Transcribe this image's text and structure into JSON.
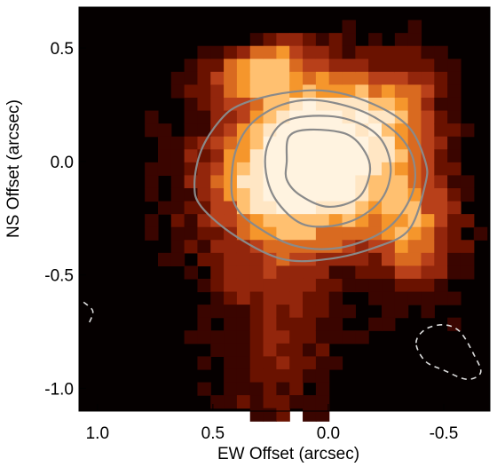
{
  "chart_data": {
    "type": "heatmap",
    "title": "",
    "xlabel": "EW Offset (arcsec)",
    "ylabel": "NS Offset (arcsec)",
    "xlim": [
      1.08,
      -0.7
    ],
    "ylim": [
      -1.1,
      0.68
    ],
    "x_ticks": [
      {
        "value": 1.0,
        "label": "1.0"
      },
      {
        "value": 0.5,
        "label": "0.5"
      },
      {
        "value": 0.0,
        "label": "0.0"
      },
      {
        "value": -0.5,
        "label": "-0.5"
      }
    ],
    "y_ticks": [
      {
        "value": 0.5,
        "label": "0.5"
      },
      {
        "value": 0.0,
        "label": "0.0"
      },
      {
        "value": -0.5,
        "label": "-0.5"
      },
      {
        "value": -1.0,
        "label": "-1.0"
      }
    ],
    "colormap": [
      "#050000",
      "#3a0500",
      "#6a1200",
      "#93260c",
      "#b8401a",
      "#d96a20",
      "#f5962c",
      "#ffc070",
      "#ffe6c4",
      "#fff3e0"
    ],
    "grid": false,
    "image": {
      "pixel_size_arcsec": 0.057,
      "blobs": [
        {
          "x": 0.05,
          "y": 0.06,
          "sx": 0.26,
          "sy": 0.2,
          "rot": 0,
          "amp": 9.5
        },
        {
          "x": 0.3,
          "y": 0.42,
          "sx": 0.17,
          "sy": 0.07,
          "rot": -20,
          "amp": 6
        },
        {
          "x": -0.38,
          "y": -0.33,
          "sx": 0.12,
          "sy": 0.2,
          "rot": 0,
          "amp": 4.5
        },
        {
          "x": -0.32,
          "y": 0.22,
          "sx": 0.14,
          "sy": 0.2,
          "rot": 0,
          "amp": 3.2
        },
        {
          "x": 0.05,
          "y": -0.18,
          "sx": 0.36,
          "sy": 0.16,
          "rot": 15,
          "amp": 3.5
        },
        {
          "x": 0.26,
          "y": -0.3,
          "sx": 0.26,
          "sy": 0.24,
          "rot": 0,
          "amp": 2.8
        },
        {
          "x": 0.23,
          "y": -0.82,
          "sx": 0.17,
          "sy": 0.3,
          "rot": 0,
          "amp": 2.6
        },
        {
          "x": 0.05,
          "y": 0.3,
          "sx": 0.25,
          "sy": 0.12,
          "rot": 0,
          "amp": 2.5
        }
      ],
      "noise_amplitude": 1.5
    },
    "contours": [
      {
        "name": "outer",
        "style": "solid",
        "color": "#8a8a8a",
        "points": [
          [
            0.58,
            -0.1
          ],
          [
            0.55,
            0.05
          ],
          [
            0.47,
            0.18
          ],
          [
            0.38,
            0.25
          ],
          [
            0.2,
            0.3
          ],
          [
            0.0,
            0.31
          ],
          [
            -0.2,
            0.25
          ],
          [
            -0.35,
            0.15
          ],
          [
            -0.42,
            0.0
          ],
          [
            -0.42,
            -0.1
          ],
          [
            -0.35,
            -0.3
          ],
          [
            -0.2,
            -0.38
          ],
          [
            0.0,
            -0.43
          ],
          [
            0.2,
            -0.43
          ],
          [
            0.4,
            -0.33
          ],
          [
            0.55,
            -0.2
          ]
        ]
      },
      {
        "name": "middle",
        "style": "solid",
        "color": "#8a8a8a",
        "points": [
          [
            0.42,
            -0.1
          ],
          [
            0.4,
            0.05
          ],
          [
            0.33,
            0.17
          ],
          [
            0.2,
            0.25
          ],
          [
            0.05,
            0.27
          ],
          [
            -0.15,
            0.22
          ],
          [
            -0.3,
            0.12
          ],
          [
            -0.37,
            0.0
          ],
          [
            -0.36,
            -0.15
          ],
          [
            -0.25,
            -0.3
          ],
          [
            -0.05,
            -0.38
          ],
          [
            0.15,
            -0.37
          ],
          [
            0.32,
            -0.28
          ],
          [
            0.4,
            -0.2
          ]
        ]
      },
      {
        "name": "inner",
        "style": "solid",
        "color": "#8a8a8a",
        "points": [
          [
            0.27,
            -0.05
          ],
          [
            0.26,
            0.08
          ],
          [
            0.18,
            0.18
          ],
          [
            0.0,
            0.2
          ],
          [
            -0.15,
            0.16
          ],
          [
            -0.24,
            0.08
          ],
          [
            -0.27,
            -0.05
          ],
          [
            -0.22,
            -0.18
          ],
          [
            -0.08,
            -0.27
          ],
          [
            0.1,
            -0.28
          ],
          [
            0.22,
            -0.18
          ]
        ]
      },
      {
        "name": "core",
        "style": "solid",
        "color": "#8a8a8a",
        "points": [
          [
            0.18,
            0.0
          ],
          [
            0.17,
            0.11
          ],
          [
            0.08,
            0.14
          ],
          [
            -0.08,
            0.12
          ],
          [
            -0.16,
            0.04
          ],
          [
            -0.18,
            -0.05
          ],
          [
            -0.13,
            -0.16
          ],
          [
            0.0,
            -0.2
          ],
          [
            0.12,
            -0.15
          ],
          [
            0.18,
            -0.08
          ]
        ]
      },
      {
        "name": "negative-right",
        "style": "dashed",
        "color": "#dcdcdc",
        "points": [
          [
            -0.38,
            -0.8
          ],
          [
            -0.42,
            -0.74
          ],
          [
            -0.5,
            -0.72
          ],
          [
            -0.57,
            -0.75
          ],
          [
            -0.63,
            -0.85
          ],
          [
            -0.66,
            -0.93
          ],
          [
            -0.6,
            -0.96
          ],
          [
            -0.5,
            -0.92
          ],
          [
            -0.42,
            -0.88
          ]
        ]
      },
      {
        "name": "negative-left",
        "style": "dashed",
        "color": "#dcdcdc",
        "points": [
          [
            1.06,
            -0.62
          ],
          [
            1.02,
            -0.66
          ],
          [
            1.04,
            -0.72
          ]
        ]
      }
    ]
  }
}
